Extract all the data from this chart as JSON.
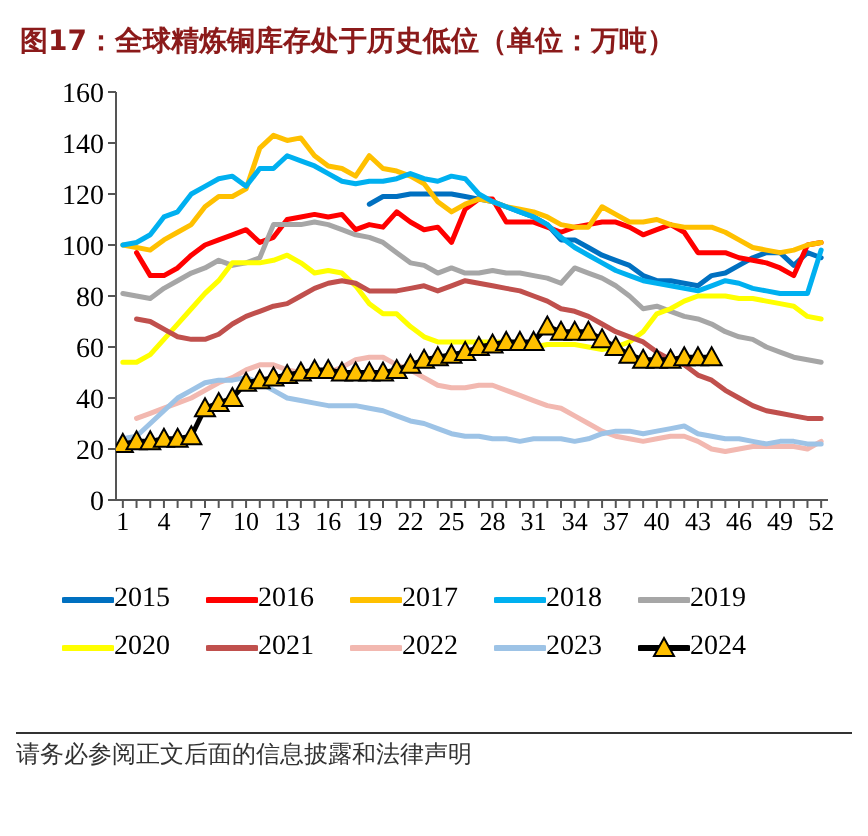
{
  "chart_data": {
    "type": "line",
    "title": "图17：全球精炼铜库存处于历史低位（单位：万吨）",
    "x": [
      1,
      2,
      3,
      4,
      5,
      6,
      7,
      8,
      9,
      10,
      11,
      12,
      13,
      14,
      15,
      16,
      17,
      18,
      19,
      20,
      21,
      22,
      23,
      24,
      25,
      26,
      27,
      28,
      29,
      30,
      31,
      32,
      33,
      34,
      35,
      36,
      37,
      38,
      39,
      40,
      41,
      42,
      43,
      44,
      45,
      46,
      47,
      48,
      49,
      50,
      51,
      52
    ],
    "xlim": [
      0.5,
      52.5
    ],
    "xticks": [
      1,
      {
        "value": 2,
        "label": null
      },
      {
        "value": 3,
        "label": null
      },
      4,
      {
        "value": 5,
        "label": null
      },
      {
        "value": 6,
        "label": null
      },
      7,
      {
        "value": 8,
        "label": null
      },
      {
        "value": 9,
        "label": null
      },
      10,
      {
        "value": 11,
        "label": null
      },
      {
        "value": 12,
        "label": null
      },
      13,
      {
        "value": 14,
        "label": null
      },
      {
        "value": 15,
        "label": null
      },
      16,
      {
        "value": 17,
        "label": null
      },
      {
        "value": 18,
        "label": null
      },
      19,
      {
        "value": 20,
        "label": null
      },
      {
        "value": 21,
        "label": null
      },
      22,
      {
        "value": 23,
        "label": null
      },
      {
        "value": 24,
        "label": null
      },
      25,
      {
        "value": 26,
        "label": null
      },
      {
        "value": 27,
        "label": null
      },
      28,
      {
        "value": 29,
        "label": null
      },
      {
        "value": 30,
        "label": null
      },
      31,
      {
        "value": 32,
        "label": null
      },
      {
        "value": 33,
        "label": null
      },
      34,
      {
        "value": 35,
        "label": null
      },
      {
        "value": 36,
        "label": null
      },
      37,
      {
        "value": 38,
        "label": null
      },
      {
        "value": 39,
        "label": null
      },
      40,
      {
        "value": 41,
        "label": null
      },
      {
        "value": 42,
        "label": null
      },
      43,
      {
        "value": 44,
        "label": null
      },
      {
        "value": 45,
        "label": null
      },
      46,
      {
        "value": 47,
        "label": null
      },
      {
        "value": 48,
        "label": null
      },
      49,
      {
        "value": 50,
        "label": null
      },
      {
        "value": 51,
        "label": null
      },
      52
    ],
    "ylim": [
      0,
      160
    ],
    "yticks": [
      0,
      20,
      40,
      60,
      80,
      100,
      120,
      140,
      160
    ],
    "grid": false,
    "legend": "bottom",
    "line_style": "solid",
    "series": [
      {
        "name": "2015",
        "color": "#0070c0",
        "values": [
          null,
          null,
          null,
          null,
          null,
          null,
          null,
          null,
          null,
          null,
          null,
          null,
          null,
          null,
          null,
          null,
          null,
          null,
          116,
          119,
          119,
          120,
          120,
          120,
          120,
          119,
          118,
          117,
          115,
          113,
          111,
          108,
          102,
          102,
          99,
          96,
          94,
          92,
          88,
          86,
          86,
          85,
          84,
          88,
          89,
          92,
          95,
          97,
          97,
          92,
          97,
          95
        ]
      },
      {
        "name": "2016",
        "color": "#ff0000",
        "values": [
          null,
          97,
          88,
          88,
          91,
          96,
          100,
          102,
          104,
          106,
          101,
          103,
          110,
          111,
          112,
          111,
          112,
          106,
          108,
          107,
          113,
          109,
          106,
          107,
          101,
          114,
          118,
          118,
          109,
          109,
          109,
          107,
          105,
          107,
          108,
          109,
          109,
          107,
          104,
          106,
          108,
          105,
          97,
          97,
          97,
          95,
          94,
          93,
          91,
          88,
          100,
          101
        ]
      },
      {
        "name": "2017",
        "color": "#ffc000",
        "values": [
          100,
          99,
          98,
          102,
          105,
          108,
          115,
          119,
          119,
          122,
          138,
          143,
          141,
          142,
          135,
          131,
          130,
          127,
          135,
          130,
          129,
          127,
          124,
          117,
          113,
          116,
          118,
          117,
          115,
          114,
          113,
          111,
          108,
          107,
          107,
          115,
          112,
          109,
          109,
          110,
          108,
          107,
          107,
          107,
          105,
          102,
          99,
          98,
          97,
          98,
          100,
          101
        ]
      },
      {
        "name": "2018",
        "color": "#00b0f0",
        "values": [
          100,
          101,
          104,
          111,
          113,
          120,
          123,
          126,
          127,
          123,
          130,
          130,
          135,
          133,
          131,
          128,
          125,
          124,
          125,
          125,
          126,
          128,
          126,
          125,
          127,
          126,
          120,
          117,
          115,
          113,
          111,
          108,
          103,
          99,
          96,
          93,
          90,
          88,
          86,
          85,
          84,
          83,
          82,
          84,
          86,
          85,
          83,
          82,
          81,
          81,
          81,
          98
        ]
      },
      {
        "name": "2019",
        "color": "#a6a6a6",
        "values": [
          81,
          80,
          79,
          83,
          86,
          89,
          91,
          94,
          92,
          93,
          95,
          108,
          108,
          108,
          109,
          108,
          106,
          104,
          103,
          101,
          97,
          93,
          92,
          89,
          91,
          89,
          89,
          90,
          89,
          89,
          88,
          87,
          85,
          91,
          89,
          87,
          84,
          80,
          75,
          76,
          74,
          72,
          71,
          69,
          66,
          64,
          63,
          60,
          58,
          56,
          55,
          54
        ]
      },
      {
        "name": "2020",
        "color": "#ffff00",
        "values": [
          54,
          54,
          57,
          63,
          69,
          75,
          81,
          86,
          93,
          93,
          93,
          94,
          96,
          93,
          89,
          90,
          89,
          84,
          77,
          73,
          73,
          68,
          64,
          62,
          62,
          62,
          62,
          62,
          62,
          61,
          60,
          61,
          61,
          61,
          60,
          59,
          60,
          62,
          66,
          73,
          75,
          78,
          80,
          80,
          80,
          79,
          79,
          78,
          77,
          76,
          72,
          71
        ]
      },
      {
        "name": "2021",
        "color": "#c0504d",
        "values": [
          null,
          71,
          70,
          67,
          64,
          63,
          63,
          65,
          69,
          72,
          74,
          76,
          77,
          80,
          83,
          85,
          86,
          85,
          82,
          82,
          82,
          83,
          84,
          82,
          84,
          86,
          85,
          84,
          83,
          82,
          80,
          78,
          75,
          74,
          72,
          69,
          66,
          64,
          62,
          58,
          55,
          53,
          49,
          47,
          43,
          40,
          37,
          35,
          34,
          33,
          32,
          32
        ]
      },
      {
        "name": "2022",
        "color": "#f2b8b0",
        "values": [
          null,
          32,
          34,
          36,
          38,
          40,
          43,
          46,
          48,
          51,
          53,
          53,
          51,
          50,
          49,
          50,
          52,
          55,
          56,
          56,
          53,
          51,
          48,
          45,
          44,
          44,
          45,
          45,
          43,
          41,
          39,
          37,
          36,
          33,
          30,
          27,
          25,
          24,
          23,
          24,
          25,
          25,
          23,
          20,
          19,
          20,
          21,
          21,
          21,
          21,
          20,
          23
        ]
      },
      {
        "name": "2023",
        "color": "#9dc3e6",
        "values": [
          24,
          25,
          30,
          35,
          40,
          43,
          46,
          47,
          47,
          48,
          46,
          43,
          40,
          39,
          38,
          37,
          37,
          37,
          36,
          35,
          33,
          31,
          30,
          28,
          26,
          25,
          25,
          24,
          24,
          23,
          24,
          24,
          24,
          23,
          24,
          26,
          27,
          27,
          26,
          27,
          28,
          29,
          26,
          25,
          24,
          24,
          23,
          22,
          23,
          23,
          22,
          22
        ]
      },
      {
        "name": "2024",
        "color": "#000000",
        "marker": "triangle",
        "values": [
          22,
          23,
          23,
          24,
          24,
          25,
          36,
          38,
          40,
          46,
          47,
          48,
          49,
          50,
          51,
          51,
          50,
          50,
          50,
          50,
          51,
          53,
          55,
          56,
          57,
          58,
          60,
          61,
          62,
          62,
          62,
          68,
          66,
          66,
          66,
          63,
          60,
          57,
          55,
          55,
          55,
          56,
          56,
          56,
          null,
          null,
          null,
          null,
          null,
          null,
          null,
          null
        ]
      }
    ],
    "annotations": [
      "请务必参阅正文后面的信息披露和法律声明"
    ]
  }
}
